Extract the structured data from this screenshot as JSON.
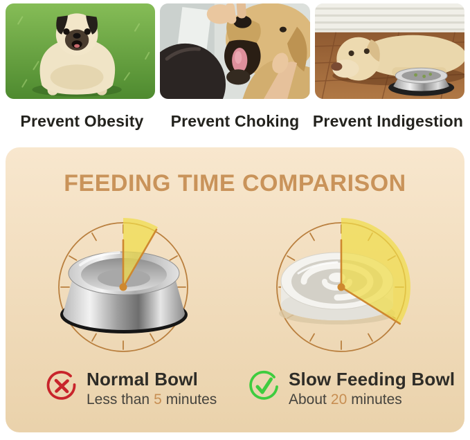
{
  "colors": {
    "accent": "#C78E52",
    "title": "#C9935A",
    "clock-stroke": "#B97F3E",
    "wedge": "#F0DD4A",
    "hand": "#CE882F",
    "cross": "#C8242B",
    "check": "#3FCC3F",
    "panel-top": "#F8E7CE",
    "panel-bottom": "#EAD2AB",
    "ink": "#2E2C27",
    "time-text": "#45433D"
  },
  "benefits": [
    {
      "caption": "Prevent Obesity",
      "photo": "overweight-pug-sitting-on-grass"
    },
    {
      "caption": "Prevent Choking",
      "photo": "owner-checking-golden-retriever-mouth"
    },
    {
      "caption": "Prevent Indigestion",
      "photo": "labrador-lying-beside-steel-bowl"
    }
  ],
  "comparison": {
    "title": "FEEDING TIME COMPARISON",
    "clocks": [
      {
        "name": "normal-bowl-clock",
        "bowl": "stainless-steel-bowl",
        "minutes": 5,
        "wedge_deg": 30
      },
      {
        "name": "slow-feeding-bowl-clock",
        "bowl": "slow-feeder-maze-bowl",
        "minutes": 20,
        "wedge_deg": 122
      }
    ],
    "items": [
      {
        "icon": "cross-icon",
        "name": "Normal Bowl",
        "time_prefix": "Less than",
        "time_value": "5",
        "time_suffix": "minutes"
      },
      {
        "icon": "check-icon",
        "name": "Slow Feeding Bowl",
        "time_prefix": "About",
        "time_value": "20",
        "time_suffix": "minutes"
      }
    ]
  }
}
